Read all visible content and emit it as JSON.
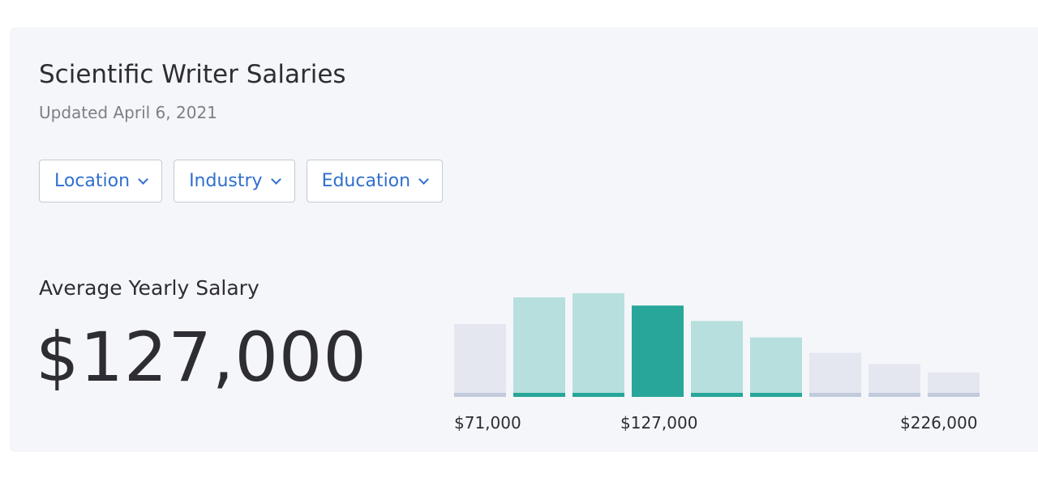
{
  "header": {
    "title": "Scientific Writer Salaries",
    "updated": "Updated April 6, 2021"
  },
  "filters": [
    {
      "label": "Location",
      "icon": "chevron-down-icon"
    },
    {
      "label": "Industry",
      "icon": "chevron-down-icon"
    },
    {
      "label": "Education",
      "icon": "chevron-down-icon"
    }
  ],
  "summary": {
    "label": "Average Yearly Salary",
    "value": "$127,000"
  },
  "colors": {
    "highlight": "#27a699",
    "in_range": "#b7dfdd",
    "in_range_base": "#27a699",
    "out_range": "#e4e7f0",
    "out_range_base": "#c2cbdc"
  },
  "chart_data": {
    "type": "bar",
    "title": "",
    "xlabel": "",
    "ylabel": "",
    "tick_labels": [
      "$71,000",
      "$127,000",
      "$226,000"
    ],
    "values": [
      0.7,
      0.96,
      1.0,
      0.88,
      0.73,
      0.57,
      0.42,
      0.31,
      0.23
    ],
    "states": [
      "out",
      "in",
      "in",
      "highlight",
      "in",
      "in",
      "out",
      "out",
      "out"
    ],
    "ylim": [
      0,
      1
    ],
    "grid": false,
    "legend": "none"
  }
}
